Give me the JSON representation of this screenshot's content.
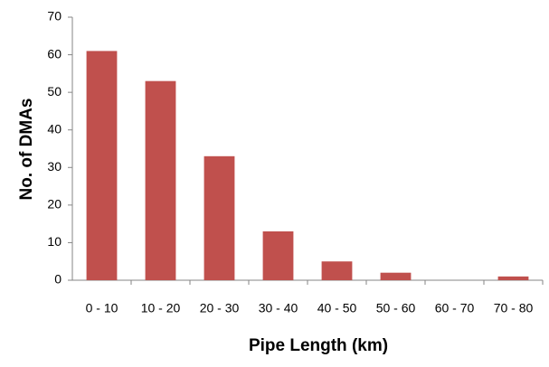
{
  "chart_data": {
    "type": "bar",
    "x_label": "Pipe Length (km)",
    "y_label": "No. of DMAs",
    "categories": [
      "0 - 10",
      "10 - 20",
      "20 - 30",
      "30 - 40",
      "40 - 50",
      "50 - 60",
      "60 - 70",
      "70 - 80"
    ],
    "values": [
      61,
      53,
      33,
      13,
      5,
      2,
      0,
      1
    ],
    "color": "#c0504d",
    "ylim": [
      0,
      70
    ],
    "yticks": [
      0,
      10,
      20,
      30,
      40,
      50,
      60,
      70
    ],
    "grid": false
  }
}
